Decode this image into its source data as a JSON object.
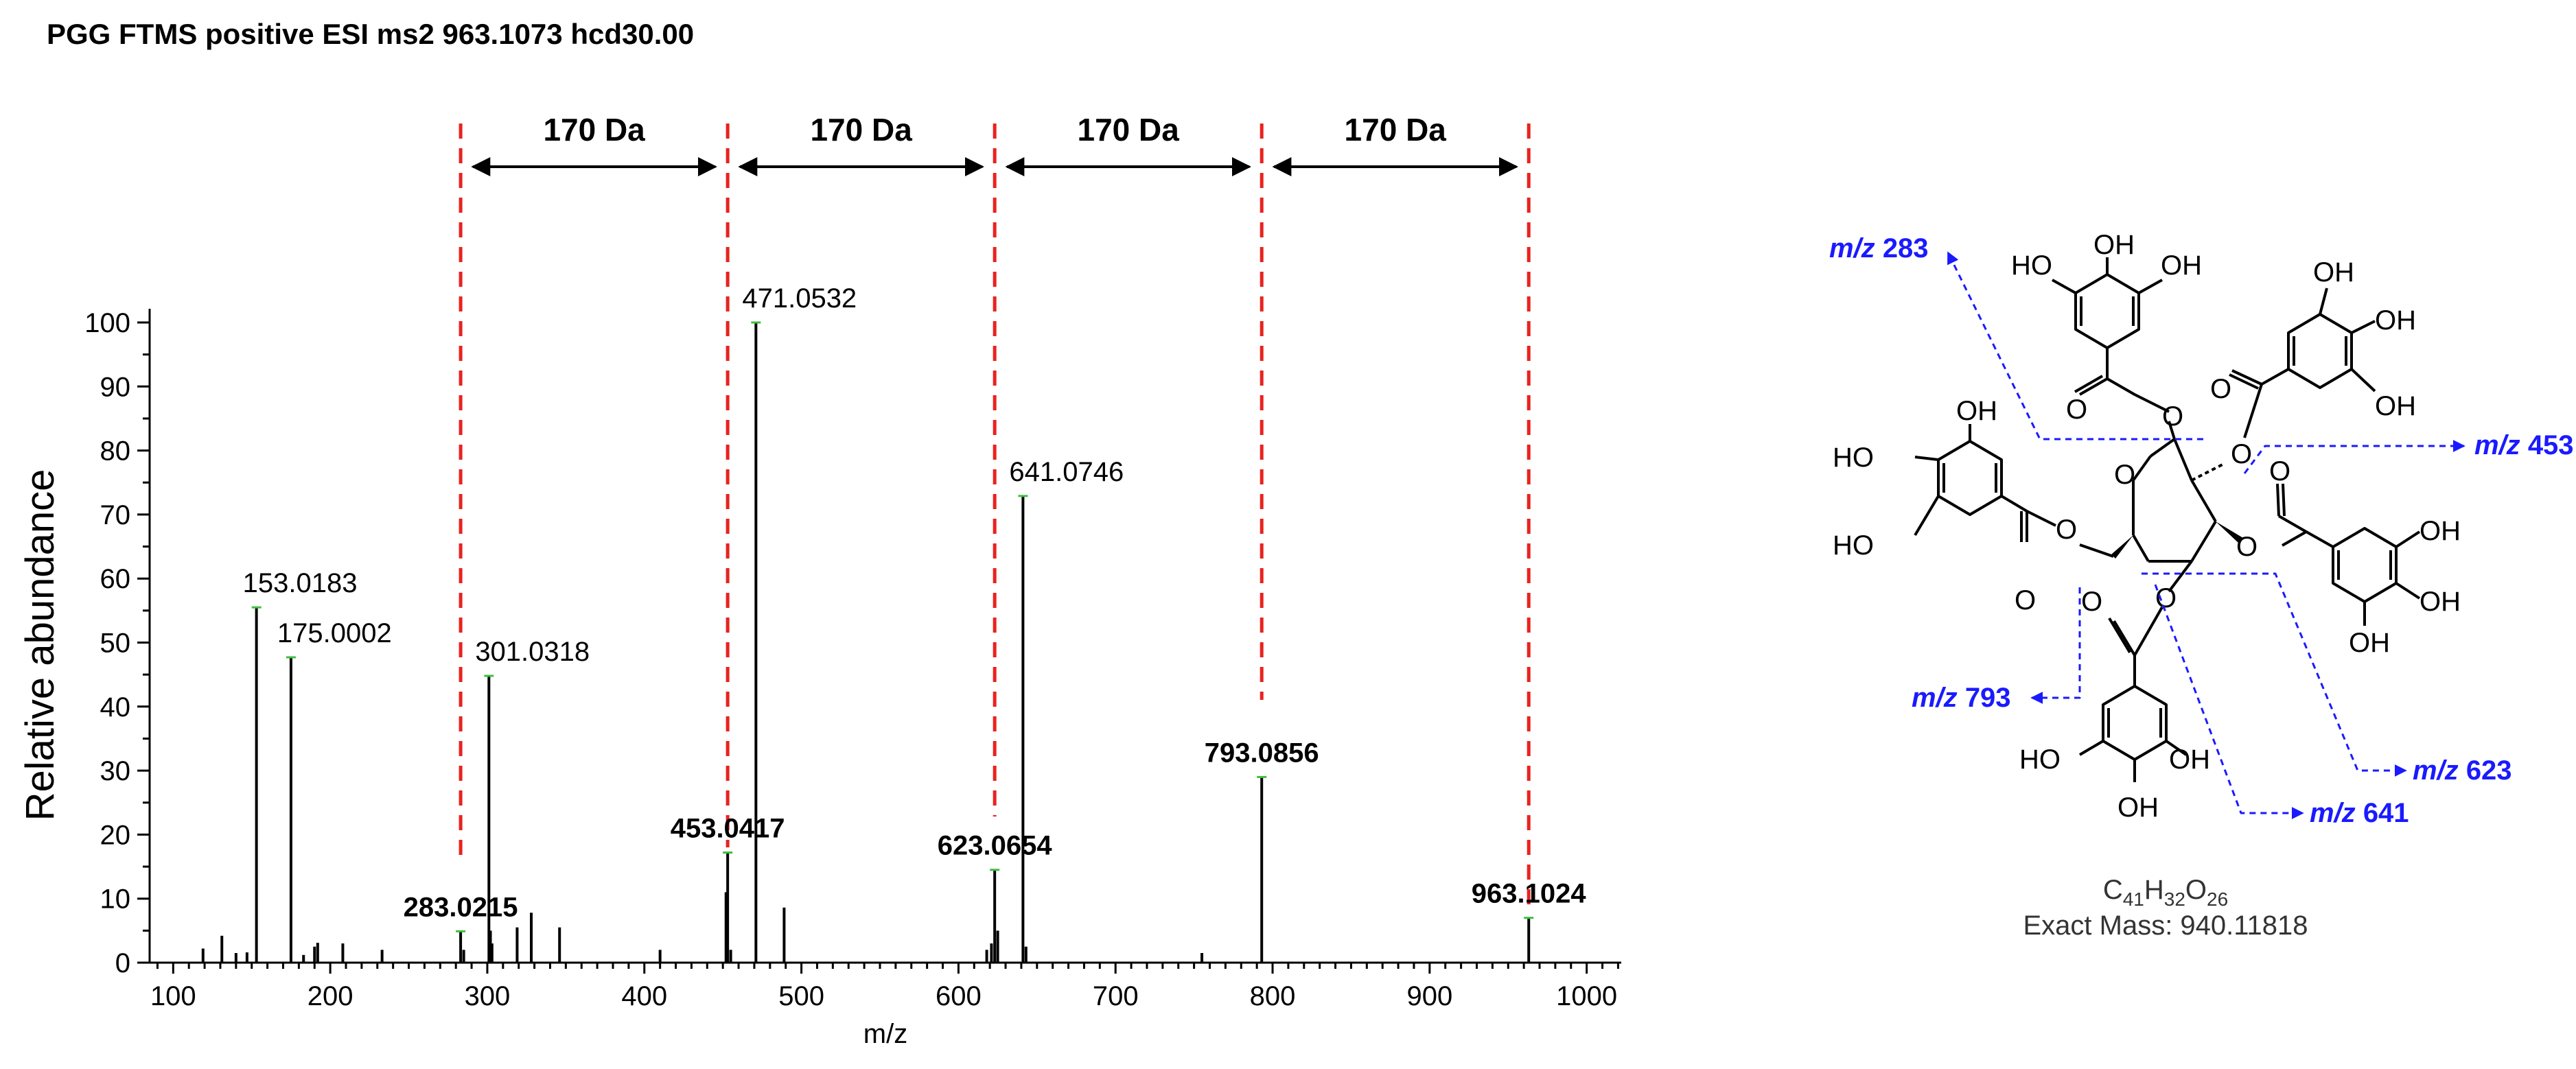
{
  "chart_data": {
    "type": "bar",
    "title": "PGG FTMS positive ESI ms2 963.1073 hcd30.00",
    "xlabel": "m/z",
    "ylabel": "Relative abundance",
    "xlim": [
      85,
      1022
    ],
    "ylim": [
      0,
      100
    ],
    "xticks": [
      100,
      200,
      300,
      400,
      500,
      600,
      700,
      800,
      900,
      1000
    ],
    "yticks": [
      0,
      10,
      20,
      30,
      40,
      50,
      60,
      70,
      80,
      90,
      100
    ],
    "peaks": [
      {
        "x": 119,
        "y": 2.2
      },
      {
        "x": 131,
        "y": 4.2
      },
      {
        "x": 140,
        "y": 1.5
      },
      {
        "x": 147,
        "y": 1.6
      },
      {
        "x": 153.0183,
        "y": 55.5
      },
      {
        "x": 175.0002,
        "y": 47.7
      },
      {
        "x": 183,
        "y": 1.2
      },
      {
        "x": 190,
        "y": 2.5
      },
      {
        "x": 192,
        "y": 3.1
      },
      {
        "x": 208,
        "y": 3.0
      },
      {
        "x": 233,
        "y": 2.0
      },
      {
        "x": 283.0215,
        "y": 4.9
      },
      {
        "x": 285,
        "y": 2.0
      },
      {
        "x": 301.0318,
        "y": 44.8
      },
      {
        "x": 302,
        "y": 5.0
      },
      {
        "x": 303,
        "y": 3.0
      },
      {
        "x": 319,
        "y": 5.5
      },
      {
        "x": 328,
        "y": 7.8
      },
      {
        "x": 346,
        "y": 5.5
      },
      {
        "x": 410,
        "y": 2.0
      },
      {
        "x": 452,
        "y": 11.0
      },
      {
        "x": 453.0417,
        "y": 17.2
      },
      {
        "x": 455,
        "y": 2.0
      },
      {
        "x": 471.0532,
        "y": 100.0
      },
      {
        "x": 489,
        "y": 8.6
      },
      {
        "x": 618,
        "y": 2.0
      },
      {
        "x": 621,
        "y": 3.0
      },
      {
        "x": 623.0654,
        "y": 14.5
      },
      {
        "x": 625,
        "y": 5.0
      },
      {
        "x": 641.0746,
        "y": 72.9
      },
      {
        "x": 643,
        "y": 2.5
      },
      {
        "x": 755,
        "y": 1.5
      },
      {
        "x": 793.0856,
        "y": 29.0
      },
      {
        "x": 963.1024,
        "y": 7.0
      }
    ],
    "peak_labels": [
      {
        "x": 153.0183,
        "y": 55.5,
        "text": "153.0183",
        "bold": false
      },
      {
        "x": 175.0002,
        "y": 47.7,
        "text": "175.0002",
        "bold": false
      },
      {
        "x": 301.0318,
        "y": 44.8,
        "text": "301.0318",
        "bold": false
      },
      {
        "x": 471.0532,
        "y": 100.0,
        "text": "471.0532",
        "bold": false
      },
      {
        "x": 641.0746,
        "y": 72.9,
        "text": "641.0746",
        "bold": false
      },
      {
        "x": 283.0215,
        "y": 4.9,
        "text": "283.0215",
        "bold": true
      },
      {
        "x": 453.0417,
        "y": 17.2,
        "text": "453.0417",
        "bold": true
      },
      {
        "x": 623.0654,
        "y": 14.5,
        "text": "623.0654",
        "bold": true
      },
      {
        "x": 793.0856,
        "y": 29.0,
        "text": "793.0856",
        "bold": true
      },
      {
        "x": 963.1024,
        "y": 7.0,
        "text": "963.1024",
        "bold": true
      }
    ],
    "annotations": {
      "mass_differences": [
        {
          "from": 283.0215,
          "to": 453.0417,
          "text": "170 Da"
        },
        {
          "from": 453.0417,
          "to": 623.0654,
          "text": "170 Da"
        },
        {
          "from": 623.0654,
          "to": 793.0856,
          "text": "170 Da"
        },
        {
          "from": 793.0856,
          "to": 963.1024,
          "text": "170 Da"
        }
      ],
      "divider_color": "#e8231f",
      "peak_color": "#000000",
      "apex_marker_color": "#3fbf3f"
    },
    "grid": false,
    "legend": "none"
  },
  "structure": {
    "formula_prefix": "C",
    "formula_c": "41",
    "formula_h_letter": "H",
    "formula_h": "32",
    "formula_o_letter": "O",
    "formula_o": "26",
    "exact_mass": "Exact Mass: 940.11818",
    "fragment_color": "#1a1aff",
    "hydroxyl": "OH",
    "hydroxyl_left": "HO",
    "oxygen": "O",
    "fragments": [
      {
        "prefix": "m/z",
        "value": "283"
      },
      {
        "prefix": "m/z",
        "value": "453"
      },
      {
        "prefix": "m/z",
        "value": "793"
      },
      {
        "prefix": "m/z",
        "value": "623"
      },
      {
        "prefix": "m/z",
        "value": "641"
      }
    ]
  }
}
